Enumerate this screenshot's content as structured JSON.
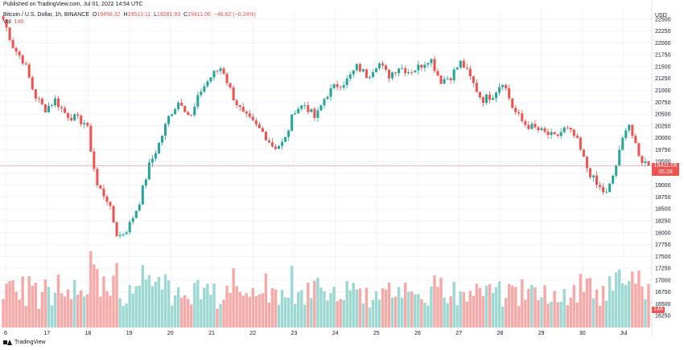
{
  "header": {
    "published": "Published on TradingView.com, Jul 01, 2022 14:54 UTC"
  },
  "legend": {
    "symbol": "Bitcoin / U.S. Dollar, 1h, BINANCE",
    "o_label": "O",
    "open": "19458.32",
    "h_label": "H",
    "high": "19513.11",
    "l_label": "L",
    "low": "19281.93",
    "c_label": "C",
    "close": "19411.06",
    "change": "−46.62 (−0.24%)",
    "volume_name": "Vol",
    "volume": "148"
  },
  "badges": {
    "last_price": "19411.06",
    "countdown": "05:28",
    "volume": "148"
  },
  "footer": {
    "brand": "TradingView"
  },
  "colors": {
    "up": "#26a69a",
    "down": "#ef5350",
    "up_volume": "#9ed8d2",
    "down_volume": "#f7a9a7",
    "price_line": "#ef5350",
    "grid": "#f0f3fa"
  },
  "chart_data": {
    "type": "candlestick",
    "interval": "1h",
    "currency": "USD",
    "ylim": [
      16000,
      22700
    ],
    "y_ticks": [
      16250,
      16500,
      16750,
      17000,
      17250,
      17500,
      17750,
      18000,
      18250,
      18500,
      18750,
      19000,
      19250,
      19500,
      19750,
      20000,
      20250,
      20500,
      20750,
      21000,
      21250,
      21500,
      21750,
      22000,
      22250,
      22500
    ],
    "x_ticks": [
      "6",
      "17",
      "18",
      "19",
      "20",
      "21",
      "22",
      "23",
      "24",
      "25",
      "26",
      "27",
      "28",
      "29",
      "30",
      "Jul"
    ],
    "last_price": 19411.06,
    "close_path": [
      [
        "16",
        22500
      ],
      [
        "16",
        21900
      ],
      [
        "16",
        21600
      ],
      [
        "16",
        20900
      ],
      [
        "17",
        20600
      ],
      [
        "17",
        20800
      ],
      [
        "17",
        20500
      ],
      [
        "17",
        20400
      ],
      [
        "18",
        20300
      ],
      [
        "18",
        19000
      ],
      [
        "18",
        18700
      ],
      [
        "18",
        17900
      ],
      [
        "19",
        18100
      ],
      [
        "19",
        18600
      ],
      [
        "19",
        19400
      ],
      [
        "19",
        19900
      ],
      [
        "20",
        20500
      ],
      [
        "20",
        20800
      ],
      [
        "20",
        20400
      ],
      [
        "20",
        21000
      ],
      [
        "21",
        21300
      ],
      [
        "21",
        21500
      ],
      [
        "21",
        20900
      ],
      [
        "21",
        20500
      ],
      [
        "22",
        20300
      ],
      [
        "22",
        20100
      ],
      [
        "22",
        19800
      ],
      [
        "22",
        19900
      ],
      [
        "23",
        20600
      ],
      [
        "23",
        20700
      ],
      [
        "23",
        20400
      ],
      [
        "23",
        20900
      ],
      [
        "24",
        21100
      ],
      [
        "24",
        21200
      ],
      [
        "24",
        21500
      ],
      [
        "24",
        21300
      ],
      [
        "25",
        21600
      ],
      [
        "25",
        21300
      ],
      [
        "25",
        21500
      ],
      [
        "25",
        21400
      ],
      [
        "26",
        21500
      ],
      [
        "26",
        21700
      ],
      [
        "26",
        21200
      ],
      [
        "26",
        21300
      ],
      [
        "27",
        21600
      ],
      [
        "27",
        21200
      ],
      [
        "27",
        20800
      ],
      [
        "27",
        20900
      ],
      [
        "28",
        21200
      ],
      [
        "28",
        20600
      ],
      [
        "28",
        20300
      ],
      [
        "28",
        20200
      ],
      [
        "29",
        20100
      ],
      [
        "29",
        20000
      ],
      [
        "29",
        20200
      ],
      [
        "29",
        20000
      ],
      [
        "30",
        19400
      ],
      [
        "30",
        19000
      ],
      [
        "30",
        18800
      ],
      [
        "30",
        19500
      ],
      [
        "Jul",
        20400
      ],
      [
        "Jul",
        19600
      ],
      [
        "Jul",
        19411
      ]
    ]
  }
}
